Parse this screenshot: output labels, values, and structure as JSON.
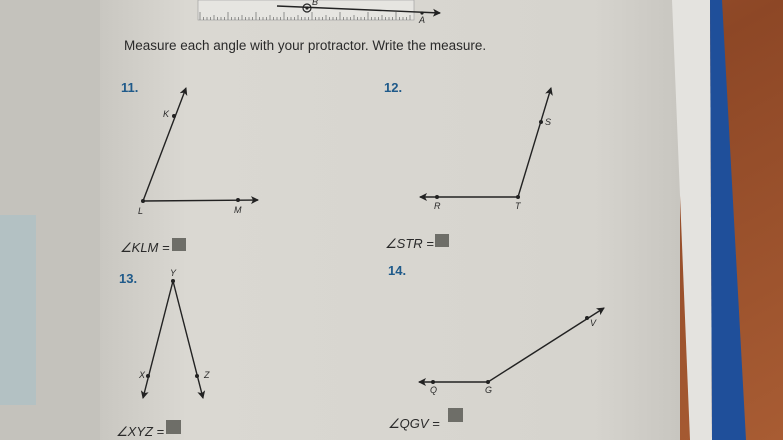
{
  "instruction": "Measure each angle with your protractor. Write the measure.",
  "ruler": {
    "point_b": "B",
    "point_a": "A"
  },
  "problems": [
    {
      "number": "11.",
      "answer_label": "∠KLM =",
      "points": [
        "K",
        "L",
        "M"
      ]
    },
    {
      "number": "12.",
      "answer_label": "∠STR =",
      "points": [
        "S",
        "T",
        "R"
      ]
    },
    {
      "number": "13.",
      "answer_label": "∠XYZ =",
      "points": [
        "X",
        "Y",
        "Z"
      ]
    },
    {
      "number": "14.",
      "answer_label": "∠QGV =",
      "points": [
        "Q",
        "G",
        "V"
      ]
    }
  ],
  "colors": {
    "page": "#d9d7d1",
    "answer_box": "#6e6e68",
    "number": "#1f5a8a",
    "book_edge": "#1f4f9a",
    "wood": "#a0522d"
  }
}
